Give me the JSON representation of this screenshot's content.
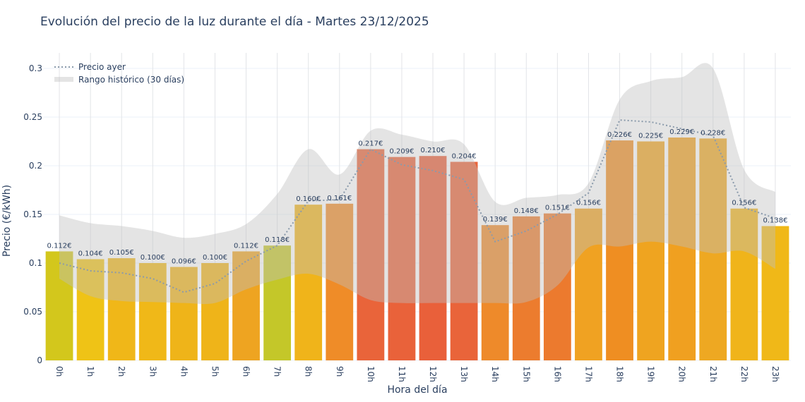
{
  "chart_data": {
    "type": "bar",
    "title": "Evolución del precio de la luz durante el día - Martes 23/12/2025",
    "xlabel": "Hora del día",
    "ylabel": "Precio (€/kWh)",
    "ylim": [
      0,
      0.315
    ],
    "yticks": [
      0,
      0.05,
      0.1,
      0.15,
      0.2,
      0.25,
      0.3
    ],
    "ytick_labels": [
      "0",
      "0.05",
      "0.1",
      "0.15",
      "0.2",
      "0.25",
      "0.3"
    ],
    "grid": true,
    "legend_position": "top-left",
    "categories": [
      "0h",
      "1h",
      "2h",
      "3h",
      "4h",
      "5h",
      "6h",
      "7h",
      "8h",
      "9h",
      "10h",
      "11h",
      "12h",
      "13h",
      "14h",
      "15h",
      "16h",
      "17h",
      "18h",
      "19h",
      "20h",
      "21h",
      "22h",
      "23h"
    ],
    "values": [
      0.112,
      0.104,
      0.105,
      0.1,
      0.096,
      0.1,
      0.112,
      0.118,
      0.16,
      0.161,
      0.217,
      0.209,
      0.21,
      0.204,
      0.139,
      0.148,
      0.151,
      0.156,
      0.226,
      0.225,
      0.229,
      0.228,
      0.156,
      0.138
    ],
    "data_labels": [
      "0.112€",
      "0.104€",
      "0.105€",
      "0.100€",
      "0.096€",
      "0.100€",
      "0.112€",
      "0.118€",
      "0.160€",
      "0.161€",
      "0.217€",
      "0.209€",
      "0.210€",
      "0.204€",
      "0.139€",
      "0.148€",
      "0.151€",
      "0.156€",
      "0.226€",
      "0.225€",
      "0.229€",
      "0.228€",
      "0.156€",
      "0.138€"
    ],
    "bar_colors": [
      "#d3c71c",
      "#efc316",
      "#f0b718",
      "#f0b818",
      "#efb419",
      "#efb419",
      "#eea421",
      "#c4c729",
      "#f0b41a",
      "#ef8c28",
      "#e9643a",
      "#e9623a",
      "#e9603a",
      "#e9643a",
      "#ee8a2a",
      "#ec7c2e",
      "#ec7a2e",
      "#f0a222",
      "#ef8e22",
      "#efa420",
      "#f0a020",
      "#eea822",
      "#f0b41a",
      "#f0b818"
    ],
    "series": [
      {
        "name": "Precio ayer",
        "style": "dotted-line",
        "color": "#8a9aab",
        "values": [
          0.1,
          0.092,
          0.09,
          0.084,
          0.07,
          0.079,
          0.102,
          0.118,
          0.164,
          0.165,
          0.217,
          0.201,
          0.195,
          0.186,
          0.122,
          0.133,
          0.15,
          0.172,
          0.247,
          0.245,
          0.238,
          0.231,
          0.157,
          0.146
        ]
      },
      {
        "name": "Rango histórico (30 días)",
        "style": "band",
        "color": "#c8c8c8",
        "lower": [
          0.084,
          0.066,
          0.061,
          0.06,
          0.059,
          0.059,
          0.073,
          0.083,
          0.089,
          0.078,
          0.062,
          0.059,
          0.059,
          0.059,
          0.059,
          0.06,
          0.077,
          0.116,
          0.117,
          0.122,
          0.117,
          0.11,
          0.112,
          0.094
        ],
        "upper": [
          0.149,
          0.141,
          0.138,
          0.133,
          0.126,
          0.13,
          0.14,
          0.171,
          0.217,
          0.191,
          0.236,
          0.232,
          0.225,
          0.222,
          0.163,
          0.167,
          0.17,
          0.182,
          0.268,
          0.287,
          0.291,
          0.3,
          0.196,
          0.173
        ]
      }
    ]
  }
}
